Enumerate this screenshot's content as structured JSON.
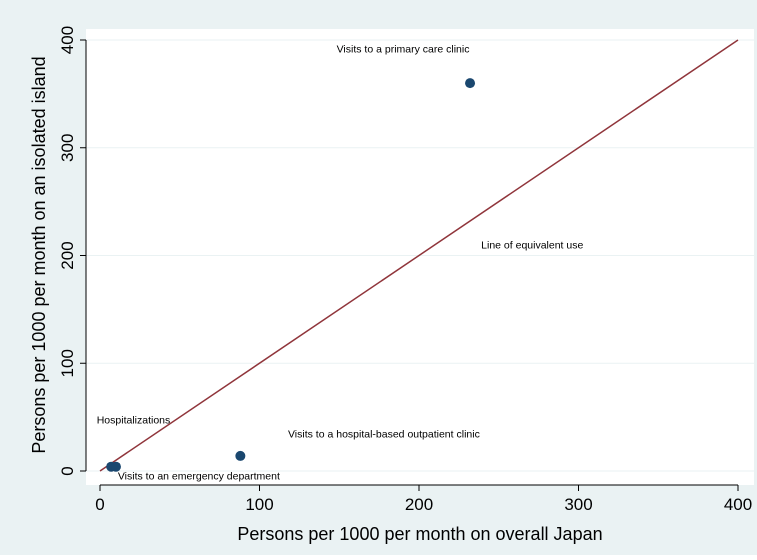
{
  "chart_data": {
    "type": "scatter",
    "title": "",
    "xlabel": "Persons per 1000 per month on overall Japan",
    "ylabel": "Persons per 1000 per month on an isolated island",
    "xlim": [
      0,
      400
    ],
    "ylim": [
      0,
      400
    ],
    "xticks": [
      "0",
      "100",
      "200",
      "300",
      "400"
    ],
    "yticks": [
      "0",
      "100",
      "200",
      "300",
      "400"
    ],
    "grid": true,
    "legend": "none",
    "colors": {
      "background": "#eaf2f3",
      "plot_area": "#ffffff",
      "point": "#1a476f",
      "line": "#90353b",
      "grid": "#eaf2f3"
    },
    "points": [
      {
        "x": 232,
        "y": 360
      },
      {
        "x": 88,
        "y": 14
      },
      {
        "x": 7,
        "y": 4
      },
      {
        "x": 10,
        "y": 4
      }
    ],
    "reference_line": {
      "label": "Line of equivalent use",
      "from": [
        0,
        0
      ],
      "to": [
        400,
        400
      ]
    },
    "annotations": [
      {
        "text": "Visits to a primary care clinic",
        "x": 190,
        "y": 392
      },
      {
        "text": "Line of equivalent use",
        "x": 271,
        "y": 210
      },
      {
        "text": "Hospitalizations",
        "x": 21,
        "y": 48
      },
      {
        "text": "Visits to a hospital-based outpatient clinic",
        "x": 178,
        "y": 35
      },
      {
        "text": "Visits to an emergency department",
        "x": 62,
        "y": -4
      }
    ]
  }
}
